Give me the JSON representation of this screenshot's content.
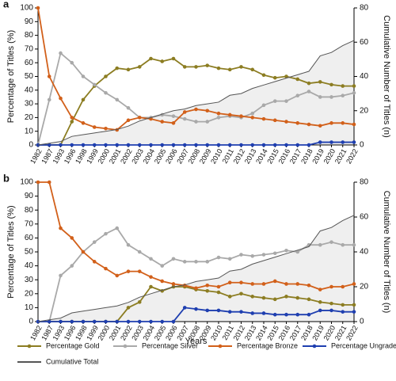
{
  "chart_data": [
    {
      "type": "line",
      "panel_label": "a",
      "y_label": "Percentage of Titles (%)",
      "y2_label": "Cumulative Number of Titles (n)",
      "categories": [
        "1982",
        "1987",
        "1993",
        "1996",
        "1998",
        "1999",
        "2000",
        "2001",
        "2002",
        "2003",
        "2004",
        "2005",
        "2006",
        "2007",
        "2008",
        "2009",
        "2010",
        "2011",
        "2012",
        "2013",
        "2014",
        "2015",
        "2016",
        "2017",
        "2018",
        "2019",
        "2020",
        "2021",
        "2022"
      ],
      "ylim": [
        0,
        100
      ],
      "yticks": [
        0,
        10,
        20,
        30,
        40,
        50,
        60,
        70,
        80,
        90,
        100
      ],
      "y2lim": [
        0,
        80
      ],
      "y2ticks": [
        0,
        20,
        40,
        60,
        80
      ],
      "series": [
        {
          "color": "#8c7d22",
          "values": [
            0,
            0,
            0,
            17,
            33,
            43,
            50,
            56,
            55,
            57,
            63,
            61,
            63,
            57,
            57,
            58,
            56,
            55,
            57,
            55,
            51,
            49,
            50,
            48,
            45,
            46,
            44,
            43,
            43
          ]
        },
        {
          "color": "#a9a9a9",
          "values": [
            0,
            33,
            67,
            60,
            50,
            44,
            38,
            33,
            27,
            20,
            20,
            22,
            21,
            19,
            17,
            17,
            20,
            21,
            20,
            23,
            29,
            32,
            32,
            36,
            39,
            35,
            35,
            36,
            38
          ]
        },
        {
          "color": "#d2601a",
          "values": [
            100,
            50,
            34,
            20,
            16,
            13,
            12,
            11,
            18,
            20,
            19,
            17,
            16,
            24,
            26,
            25,
            23,
            22,
            21,
            20,
            19,
            18,
            17,
            16,
            15,
            14,
            16,
            16,
            15
          ]
        },
        {
          "color": "#1f3fb0",
          "values": [
            0,
            0,
            0,
            0,
            0,
            0,
            0,
            0,
            0,
            0,
            0,
            0,
            0,
            0,
            0,
            0,
            0,
            0,
            0,
            0,
            0,
            0,
            0,
            0,
            0,
            2,
            2,
            2,
            2
          ]
        },
        {
          "color": "#555555",
          "fill": "#efefef",
          "style": "area",
          "axis": "y2",
          "values": [
            0,
            1,
            2,
            5,
            6,
            7,
            8,
            9,
            11,
            14,
            16,
            18,
            20,
            21,
            23,
            24,
            25,
            29,
            30,
            33,
            35,
            37,
            39,
            41,
            43,
            52,
            54,
            58,
            61
          ]
        }
      ]
    },
    {
      "type": "line",
      "panel_label": "b",
      "y_label": "Percentage of Titles (%)",
      "y2_label": "Cumulative Number of Titles (n)",
      "x_label": "Years",
      "categories": [
        "1982",
        "1987",
        "1993",
        "1996",
        "1998",
        "1999",
        "2000",
        "2001",
        "2002",
        "2003",
        "2004",
        "2005",
        "2006",
        "2007",
        "2008",
        "2009",
        "2010",
        "2011",
        "2012",
        "2013",
        "2014",
        "2015",
        "2016",
        "2017",
        "2018",
        "2019",
        "2020",
        "2021",
        "2022"
      ],
      "ylim": [
        0,
        100
      ],
      "yticks": [
        0,
        10,
        20,
        30,
        40,
        50,
        60,
        70,
        80,
        90,
        100
      ],
      "y2lim": [
        0,
        80
      ],
      "y2ticks": [
        0,
        20,
        40,
        60,
        80
      ],
      "legend": "bottom",
      "series": [
        {
          "name": "Percentage Gold",
          "color": "#8c7d22",
          "values": [
            0,
            0,
            0,
            0,
            0,
            0,
            0,
            0,
            10,
            14,
            25,
            22,
            25,
            25,
            23,
            22,
            21,
            18,
            20,
            18,
            17,
            16,
            18,
            17,
            16,
            14,
            13,
            12,
            12
          ]
        },
        {
          "name": "Percentage Silver",
          "color": "#a9a9a9",
          "values": [
            0,
            0,
            33,
            40,
            50,
            57,
            63,
            67,
            55,
            50,
            45,
            40,
            45,
            43,
            43,
            43,
            46,
            45,
            48,
            47,
            48,
            49,
            51,
            50,
            55,
            55,
            57,
            55,
            55
          ]
        },
        {
          "name": "Percentage Bronze",
          "color": "#d2601a",
          "values": [
            100,
            100,
            67,
            60,
            50,
            43,
            38,
            33,
            36,
            36,
            32,
            29,
            27,
            26,
            24,
            26,
            25,
            28,
            28,
            27,
            27,
            29,
            27,
            27,
            26,
            23,
            25,
            25,
            27
          ]
        },
        {
          "name": "Percentage Ungraded",
          "color": "#1f3fb0",
          "values": [
            0,
            0,
            0,
            0,
            0,
            0,
            0,
            0,
            0,
            0,
            0,
            0,
            0,
            10,
            9,
            8,
            8,
            7,
            7,
            6,
            6,
            5,
            5,
            5,
            5,
            8,
            8,
            7,
            7
          ]
        },
        {
          "name": "Cumulative  Total",
          "color": "#555555",
          "fill": "#efefef",
          "style": "area",
          "axis": "y2",
          "values": [
            0,
            1,
            2,
            5,
            6,
            7,
            8,
            9,
            11,
            14,
            16,
            18,
            20,
            21,
            23,
            24,
            25,
            29,
            30,
            33,
            35,
            37,
            39,
            41,
            43,
            52,
            54,
            58,
            61
          ]
        }
      ]
    }
  ]
}
